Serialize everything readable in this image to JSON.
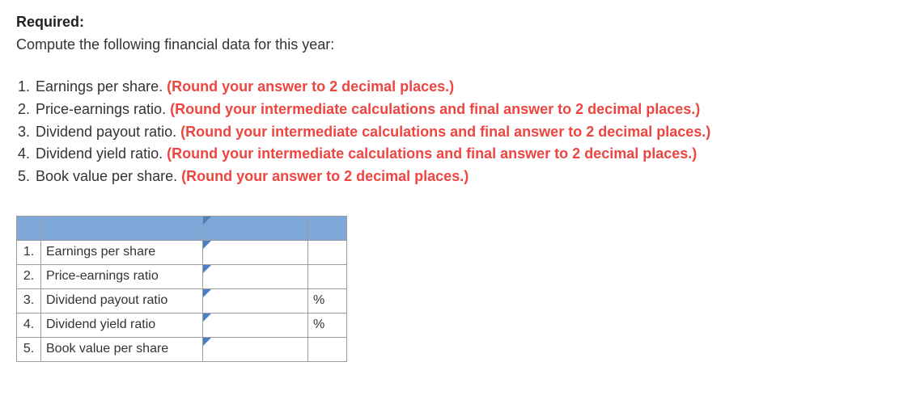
{
  "header": {
    "required_label": "Required:",
    "intro": "Compute the following financial data for this year:"
  },
  "questions": [
    {
      "num": "1.",
      "text": "Earnings per share. ",
      "hint": "(Round your answer to 2 decimal places.)"
    },
    {
      "num": "2.",
      "text": "Price-earnings ratio. ",
      "hint": "(Round your intermediate calculations and final answer to 2 decimal places.)"
    },
    {
      "num": "3.",
      "text": "Dividend payout ratio. ",
      "hint": "(Round your intermediate calculations and final answer to 2 decimal places.)"
    },
    {
      "num": "4.",
      "text": "Dividend yield ratio. ",
      "hint": "(Round your intermediate calculations and final answer to 2 decimal places.)"
    },
    {
      "num": "5.",
      "text": "Book value per share. ",
      "hint": "(Round your answer to 2 decimal places.)"
    }
  ],
  "table": {
    "header_color": "#7fa8d9",
    "border_color": "#999ca0",
    "rows": [
      {
        "num": "1.",
        "label": "Earnings per share",
        "value": "",
        "unit": ""
      },
      {
        "num": "2.",
        "label": "Price-earnings ratio",
        "value": "",
        "unit": ""
      },
      {
        "num": "3.",
        "label": "Dividend payout ratio",
        "value": "",
        "unit": "%"
      },
      {
        "num": "4.",
        "label": "Dividend yield ratio",
        "value": "",
        "unit": "%"
      },
      {
        "num": "5.",
        "label": "Book value per share",
        "value": "",
        "unit": ""
      }
    ]
  }
}
